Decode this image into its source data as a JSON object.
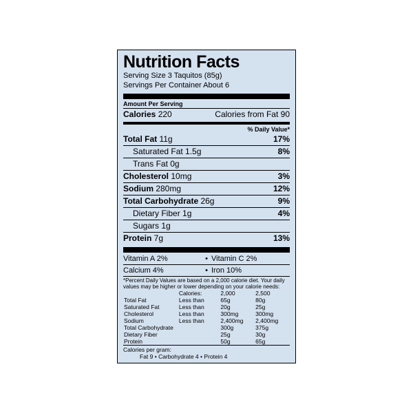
{
  "title": "Nutrition Facts",
  "serving_size": "Serving Size 3 Taquitos (85g)",
  "servings_per": "Servings Per Container About 6",
  "amount_per": "Amount Per Serving",
  "calories_label": "Calories",
  "calories": "220",
  "cal_from_fat": "Calories from Fat 90",
  "dv_head": "% Daily Value*",
  "rows": [
    {
      "label": "Total Fat",
      "amt": "11g",
      "pct": "17%",
      "bold": true
    },
    {
      "label": "Saturated Fat",
      "amt": "1.5g",
      "pct": "8%",
      "indent": true
    },
    {
      "label": "Trans Fat",
      "amt": "0g",
      "pct": "",
      "indent": true
    },
    {
      "label": "Cholesterol",
      "amt": "10mg",
      "pct": "3%",
      "bold": true
    },
    {
      "label": "Sodium",
      "amt": "280mg",
      "pct": "12%",
      "bold": true
    },
    {
      "label": "Total Carbohydrate",
      "amt": "26g",
      "pct": "9%",
      "bold": true
    },
    {
      "label": "Dietary Fiber",
      "amt": "1g",
      "pct": "4%",
      "indent": true
    },
    {
      "label": "Sugars",
      "amt": "1g",
      "pct": "",
      "indent": true
    },
    {
      "label": "Protein",
      "amt": "7g",
      "pct": "13%",
      "bold": true
    }
  ],
  "vitamins": [
    {
      "l": "Vitamin A 2%",
      "r": "Vitamin C 2%"
    },
    {
      "l": "Calcium 4%",
      "r": "Iron 10%"
    }
  ],
  "disclaimer": "*Percent Daily Values are based on a 2,000 calorie diet. Your daily values may be higher or lower depending on your calorie needs:",
  "ref_head": {
    "c2": "Calories:",
    "c3": "2,000",
    "c4": "2,500"
  },
  "ref_rows": [
    {
      "n": "Total Fat",
      "op": "Less than",
      "a": "65g",
      "b": "80g"
    },
    {
      "n": "Saturated Fat",
      "op": "Less than",
      "a": "20g",
      "b": "25g",
      "ind": true
    },
    {
      "n": "Cholesterol",
      "op": "Less than",
      "a": "300mg",
      "b": "300mg"
    },
    {
      "n": "Sodium",
      "op": "Less than",
      "a": "2,400mg",
      "b": "2,400mg"
    },
    {
      "n": "Total Carbohydrate",
      "op": "",
      "a": "300g",
      "b": "375g"
    },
    {
      "n": "Dietary Fiber",
      "op": "",
      "a": "25g",
      "b": "30g",
      "ind": true
    },
    {
      "n": "Protein",
      "op": "",
      "a": "50g",
      "b": "65g"
    }
  ],
  "cpg_title": "Calories per gram:",
  "cpg_line": "Fat 9  •  Carbohydrate 4  •  Protein 4"
}
